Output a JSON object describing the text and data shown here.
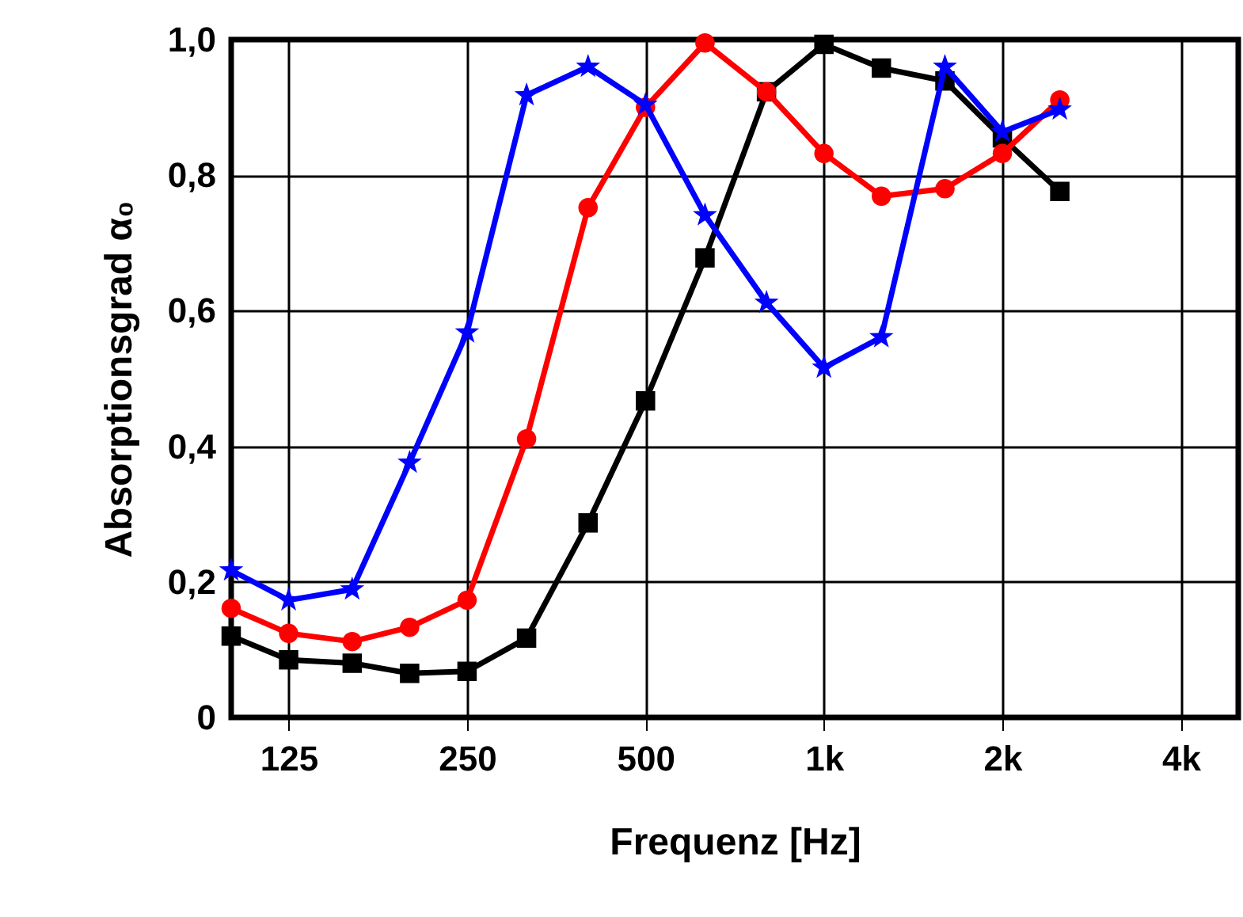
{
  "chart_data": {
    "type": "line",
    "xlabel": "Frequenz [Hz]",
    "ylabel": "Absorptionsgrad α₀",
    "x": [
      100,
      125,
      160,
      200,
      250,
      315,
      400,
      500,
      630,
      800,
      1000,
      1250,
      1600,
      2000,
      2500
    ],
    "series": [
      {
        "color": "#000000",
        "marker": "square",
        "values": [
          0.12,
          0.085,
          0.08,
          0.065,
          0.068,
          0.117,
          0.287,
          0.467,
          0.678,
          0.923,
          0.993,
          0.958,
          0.939,
          0.855,
          0.776
        ]
      },
      {
        "color": "#ff0000",
        "marker": "circle",
        "values": [
          0.161,
          0.124,
          0.112,
          0.133,
          0.173,
          0.411,
          0.752,
          0.9,
          0.995,
          0.923,
          0.832,
          0.769,
          0.78,
          0.832,
          0.911
        ]
      },
      {
        "color": "#0000ff",
        "marker": "star",
        "values": [
          0.217,
          0.173,
          0.189,
          0.376,
          0.568,
          0.918,
          0.96,
          0.904,
          0.741,
          0.612,
          0.516,
          0.561,
          0.96,
          0.864,
          0.897
        ]
      }
    ],
    "log": "x",
    "xlim": [
      100,
      5000
    ],
    "xticks": [
      125,
      250,
      500,
      {
        "value": 1000,
        "label": "1k"
      },
      {
        "value": 2000,
        "label": "2k"
      },
      {
        "value": 4000,
        "label": "4k"
      }
    ],
    "ylim": [
      0,
      1
    ],
    "yticks": [
      {
        "value": 0,
        "label": "0"
      },
      {
        "value": 0.2,
        "label": "0,2"
      },
      {
        "value": 0.4,
        "label": "0,4"
      },
      {
        "value": 0.6,
        "label": "0,6"
      },
      {
        "value": 0.8,
        "label": "0,8"
      },
      {
        "value": 1,
        "label": "1,0"
      }
    ],
    "grid": true,
    "line_style": "solid"
  }
}
